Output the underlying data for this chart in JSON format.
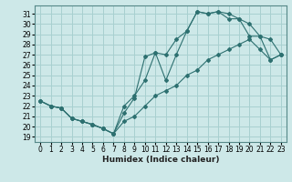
{
  "xlabel": "Humidex (Indice chaleur)",
  "ylabel": "",
  "bg_color": "#cde8e8",
  "line_color": "#2d7070",
  "grid_color": "#a8d0d0",
  "xlim": [
    -0.5,
    23.5
  ],
  "ylim": [
    18.5,
    31.8
  ],
  "xticks": [
    0,
    1,
    2,
    3,
    4,
    5,
    6,
    7,
    8,
    9,
    10,
    11,
    12,
    13,
    14,
    15,
    16,
    17,
    18,
    19,
    20,
    21,
    22,
    23
  ],
  "yticks": [
    19,
    20,
    21,
    22,
    23,
    24,
    25,
    26,
    27,
    28,
    29,
    30,
    31
  ],
  "line1_x": [
    0,
    1,
    2,
    3,
    4,
    5,
    6,
    7,
    8,
    9,
    10,
    11,
    12,
    13,
    14,
    15,
    16,
    17,
    18,
    19,
    20,
    21,
    22,
    23
  ],
  "line1_y": [
    22.5,
    22.0,
    21.8,
    20.8,
    20.5,
    20.2,
    19.8,
    19.3,
    21.3,
    22.8,
    26.8,
    27.2,
    27.0,
    28.5,
    29.3,
    31.2,
    31.0,
    31.2,
    30.5,
    30.5,
    28.8,
    28.8,
    26.5,
    27.0
  ],
  "line2_x": [
    0,
    1,
    2,
    3,
    4,
    5,
    6,
    7,
    8,
    9,
    10,
    11,
    12,
    13,
    14,
    15,
    16,
    17,
    18,
    19,
    20,
    21,
    22,
    23
  ],
  "line2_y": [
    22.5,
    22.0,
    21.8,
    20.8,
    20.5,
    20.2,
    19.8,
    19.3,
    22.0,
    23.0,
    24.5,
    27.2,
    24.5,
    27.0,
    29.3,
    31.2,
    31.0,
    31.2,
    31.0,
    30.5,
    30.0,
    28.8,
    28.5,
    27.0
  ],
  "line3_x": [
    0,
    1,
    2,
    3,
    4,
    5,
    6,
    7,
    8,
    9,
    10,
    11,
    12,
    13,
    14,
    15,
    16,
    17,
    18,
    19,
    20,
    21,
    22,
    23
  ],
  "line3_y": [
    22.5,
    22.0,
    21.8,
    20.8,
    20.5,
    20.2,
    19.8,
    19.3,
    20.5,
    21.0,
    22.0,
    23.0,
    23.5,
    24.0,
    25.0,
    25.5,
    26.5,
    27.0,
    27.5,
    28.0,
    28.5,
    27.5,
    26.5,
    27.0
  ]
}
